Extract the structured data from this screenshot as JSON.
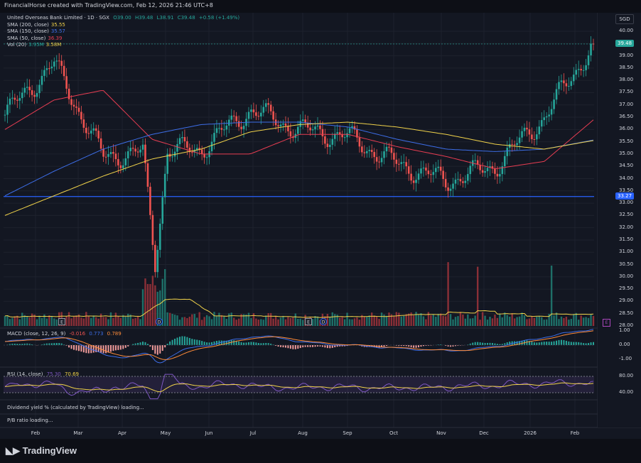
{
  "header": {
    "attribution": "FinancialHorse created with TradingView.com, Feb 12, 2026 21:46 UTC+8"
  },
  "symbol": {
    "title": "United Overseas Bank Limited · 1D · SGX",
    "open": "O39.00",
    "high": "H39.48",
    "low": "L38.91",
    "close": "C39.48",
    "change": "+0.58 (+1.49%)",
    "currency": "SGD"
  },
  "indicators": [
    {
      "label": "SMA (200, close)",
      "value": "35.55",
      "color": "#f0d24a"
    },
    {
      "label": "SMA (150, close)",
      "value": "35.57",
      "color": "#3d6ee8"
    },
    {
      "label": "SMA (50, close)",
      "value": "36.39",
      "color": "#e83d52"
    },
    {
      "label": "Vol (20)",
      "value": "3.95M",
      "value2": "3.58M",
      "color": "#26a69a",
      "color2": "#f0d24a"
    }
  ],
  "macd": {
    "label": "MACD (close, 12, 26, 9)",
    "hist": "-0.016",
    "macd": "0.773",
    "signal": "0.789"
  },
  "rsi": {
    "label": "RSI (14, close)",
    "value": "75.30",
    "ma": "70.69"
  },
  "extra_panes": [
    "Dividend yield % (calculated by TradingView) loading...",
    "P/B ratio loading..."
  ],
  "price_axis": {
    "ticks": [
      "40.00",
      "39.00",
      "38.50",
      "38.00",
      "37.50",
      "37.00",
      "36.50",
      "36.00",
      "35.50",
      "35.00",
      "34.50",
      "34.00",
      "33.50",
      "33.00",
      "32.50",
      "32.00",
      "31.50",
      "31.00",
      "30.50",
      "30.00",
      "29.50",
      "29.00",
      "28.50",
      "28.00"
    ],
    "last": "39.48",
    "hline": "33.27"
  },
  "macd_axis": {
    "ticks": [
      "1.00",
      "0.00",
      "-1.00"
    ]
  },
  "rsi_axis": {
    "ticks": [
      "80.00",
      "40.00"
    ]
  },
  "x_axis": [
    "Feb",
    "Mar",
    "Apr",
    "May",
    "Jun",
    "Jul",
    "Aug",
    "Sep",
    "Oct",
    "Nov",
    "Dec",
    "2026",
    "Feb"
  ],
  "events": {
    "earnings": "E",
    "dividend": "D",
    "future": "E"
  },
  "brand": "TradingView",
  "chart_data": {
    "type": "line",
    "x": [
      "Feb",
      "Mar",
      "Apr",
      "May",
      "Jun",
      "Jul",
      "Aug",
      "Sep",
      "Oct",
      "Nov",
      "Dec",
      "2026",
      "Feb"
    ],
    "series": [
      {
        "name": "Close",
        "values": [
          36.6,
          38.7,
          34.9,
          35.1,
          35.2,
          36.8,
          36.0,
          35.7,
          34.6,
          33.9,
          34.5,
          36.5,
          39.48
        ]
      },
      {
        "name": "SMA (50, close)",
        "values": [
          36.0,
          37.2,
          37.6,
          35.6,
          35.0,
          35.0,
          35.8,
          35.8,
          35.3,
          34.9,
          34.4,
          34.7,
          36.39
        ]
      },
      {
        "name": "SMA (150, close)",
        "values": [
          33.3,
          34.3,
          35.2,
          35.8,
          36.2,
          36.3,
          36.3,
          36.1,
          35.6,
          35.2,
          35.1,
          35.2,
          35.57
        ]
      },
      {
        "name": "SMA (200, close)",
        "values": [
          32.5,
          33.3,
          34.1,
          34.8,
          35.2,
          35.9,
          36.2,
          36.3,
          36.1,
          35.8,
          35.4,
          35.2,
          35.55
        ]
      }
    ],
    "hline": 33.27,
    "ylim": [
      28.0,
      40.0
    ],
    "grid": true,
    "legend": "top-left"
  }
}
